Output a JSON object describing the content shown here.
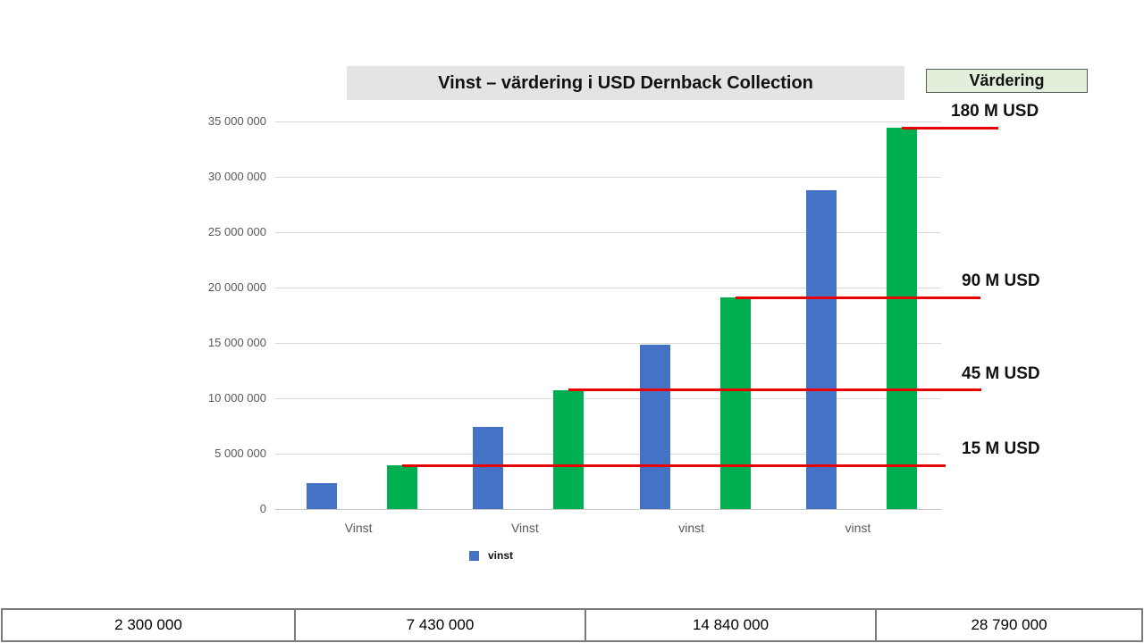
{
  "title": "Vinst – värdering i USD Dernback Collection",
  "vardering_header": "Värdering",
  "legend": {
    "label": "vinst",
    "color": "#4472C4"
  },
  "colors": {
    "blue": "#4472C4",
    "green": "#00B050",
    "red": "#E60000",
    "grid": "#D9D9D9",
    "axis_text": "#595959",
    "title_bg": "#E4E4E4",
    "vardering_bg": "#E2EFDA"
  },
  "chart_data": {
    "type": "bar",
    "title": "Vinst – värdering i USD Dernback Collection",
    "categories": [
      "Vinst",
      "Vinst",
      "vinst",
      "vinst"
    ],
    "series": [
      {
        "name": "vinst",
        "color": "#4472C4",
        "values": [
          2300000,
          7430000,
          14840000,
          28790000
        ]
      },
      {
        "name": "",
        "color": "#00B050",
        "values": [
          3950000,
          10730000,
          19100000,
          34400000
        ]
      }
    ],
    "y_axis": {
      "min": 0,
      "max": 35000000,
      "tick_step": 5000000,
      "tick_labels": [
        "0",
        "5 000 000",
        "10 000 000",
        "15 000 000",
        "20 000 000",
        "25 000 000",
        "30 000 000",
        "35 000 000"
      ]
    },
    "markers": [
      {
        "label": "15 M USD",
        "at_value": 3950000
      },
      {
        "label": "45 M USD",
        "at_value": 10730000
      },
      {
        "label": "90 M USD",
        "at_value": 19100000
      },
      {
        "label": "180 M USD",
        "at_value": 34400000
      }
    ],
    "legend_entries": [
      "vinst"
    ],
    "grid": true,
    "legend_position": "bottom-left"
  },
  "bottom_table": {
    "values": [
      "2 300 000",
      "7 430 000",
      "14 840 000",
      "28 790 000"
    ]
  }
}
